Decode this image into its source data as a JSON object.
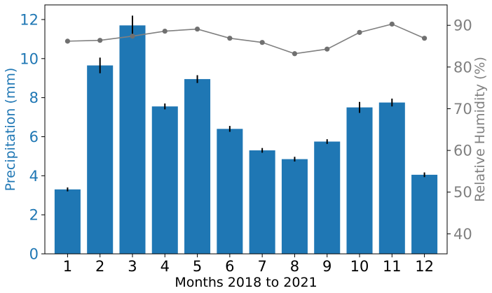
{
  "chart_data": {
    "type": "bar",
    "title": "",
    "xlabel": "Months 2018 to 2021",
    "categories": [
      "1",
      "2",
      "3",
      "4",
      "5",
      "6",
      "7",
      "8",
      "9",
      "10",
      "11",
      "12"
    ],
    "series": [
      {
        "name": "Precipitation (mm)",
        "type": "bar",
        "axis": "left",
        "values": [
          3.3,
          9.65,
          11.7,
          7.55,
          8.95,
          6.4,
          5.3,
          4.85,
          5.75,
          7.5,
          7.75,
          4.05
        ],
        "errors": [
          0.1,
          0.4,
          0.5,
          0.15,
          0.2,
          0.15,
          0.12,
          0.12,
          0.12,
          0.28,
          0.2,
          0.12
        ],
        "color": "#1f77b4"
      },
      {
        "name": "Relative Humidity (%)",
        "type": "line",
        "axis": "right",
        "values": [
          86.2,
          86.4,
          87.4,
          88.6,
          89.1,
          86.9,
          85.9,
          83.2,
          84.3,
          88.3,
          90.3,
          86.9
        ],
        "color": "#808080"
      }
    ],
    "y_left": {
      "label": "Precipitation (mm)",
      "ylim": [
        0,
        12.75
      ],
      "ticks": [
        0,
        2,
        4,
        6,
        8,
        10,
        12
      ],
      "color": "#1f77b4"
    },
    "y_right": {
      "label": "Relative Humidity (%)",
      "ylim": [
        35.2,
        94.9
      ],
      "ticks": [
        40,
        50,
        60,
        70,
        80,
        90
      ],
      "color": "#808080"
    },
    "grid": false,
    "legend": "none"
  }
}
